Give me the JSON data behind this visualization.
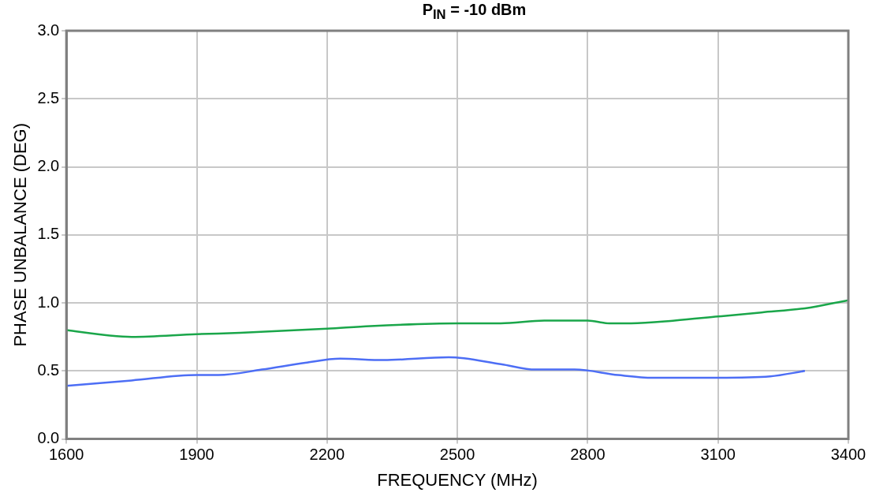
{
  "chart_data": {
    "type": "line",
    "title": "P$_{IN}$ = -10 dBm",
    "xlabel": "FREQUENCY (MHz)",
    "ylabel": "PHASE UNBALANCE (DEG)",
    "xlim": [
      1600,
      3400
    ],
    "xticks": [
      1600,
      1900,
      2200,
      2500,
      2800,
      3100,
      3400
    ],
    "ylim": [
      0,
      3
    ],
    "yticks": [
      {
        "value": 0,
        "label": "0.0"
      },
      {
        "value": 0.5,
        "label": "0.5"
      },
      {
        "value": 1,
        "label": "1.0"
      },
      {
        "value": 1.5,
        "label": "1.5"
      },
      {
        "value": 2,
        "label": "2.0"
      },
      {
        "value": 2.5,
        "label": "2.5"
      },
      {
        "value": 3,
        "label": "3.0"
      }
    ],
    "grid": true,
    "marker": "none",
    "line_style": "solid",
    "series": [
      {
        "color": "#1aa64a",
        "x": [
          1600,
          1700,
          1750,
          1900,
          2000,
          2200,
          2300,
          2500,
          2600,
          2700,
          2800,
          2850,
          2900,
          3000,
          3100,
          3200,
          3300,
          3400
        ],
        "values": [
          0.8,
          0.76,
          0.75,
          0.77,
          0.78,
          0.81,
          0.83,
          0.85,
          0.85,
          0.87,
          0.87,
          0.85,
          0.85,
          0.87,
          0.9,
          0.93,
          0.96,
          1.02
        ]
      },
      {
        "color": "#4d6ef5",
        "x": [
          1600,
          1750,
          1900,
          1950,
          2050,
          2150,
          2230,
          2330,
          2480,
          2600,
          2680,
          2770,
          2870,
          2950,
          3100,
          3220,
          3300
        ],
        "values": [
          0.39,
          0.43,
          0.47,
          0.47,
          0.51,
          0.56,
          0.59,
          0.58,
          0.6,
          0.55,
          0.51,
          0.51,
          0.47,
          0.45,
          0.45,
          0.46,
          0.5
        ]
      }
    ]
  }
}
